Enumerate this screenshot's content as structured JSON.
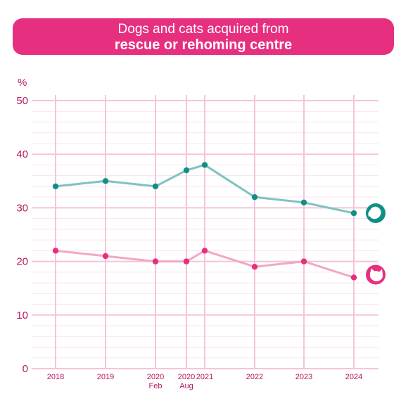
{
  "title": {
    "line1": "Dogs and cats acquired from",
    "line2": "rescue or rehoming centre"
  },
  "colors": {
    "banner": "#e6307f",
    "axis_text": "#b5175f",
    "grid_major": "#f6c4d8",
    "grid_minor": "#fbe3ec",
    "dog_line": "#7ec3c0",
    "dog_point": "#0f8f86",
    "cat_line": "#f2a7c5",
    "cat_point": "#e6307f"
  },
  "chart_data": {
    "type": "line",
    "ylabel": "%",
    "ylim": [
      0,
      50
    ],
    "yticks": [
      0,
      10,
      20,
      30,
      40,
      50
    ],
    "grid": true,
    "categories": [
      "2018",
      "2019",
      "2020",
      "2020",
      "2021",
      "2022",
      "2023",
      "2024"
    ],
    "category_sublabels": [
      "",
      "",
      "Feb",
      "Aug",
      "",
      "",
      "",
      ""
    ],
    "series": [
      {
        "icon": "dog-icon",
        "values": [
          34,
          35,
          34,
          37,
          38,
          32,
          31,
          29
        ]
      },
      {
        "icon": "cat-icon",
        "values": [
          22,
          21,
          20,
          20,
          22,
          19,
          20,
          17
        ]
      }
    ]
  }
}
